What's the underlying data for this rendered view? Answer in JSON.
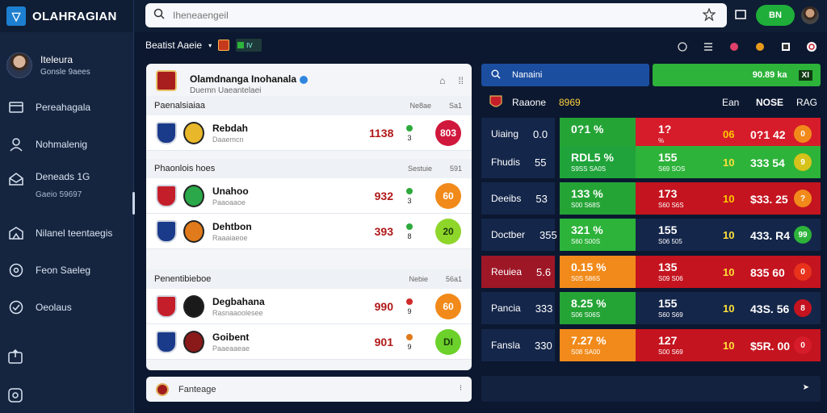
{
  "app": {
    "title": "OLAHRAGIAN"
  },
  "profile": {
    "name": "Iteleura",
    "subtitle": "Gonsle 9aees"
  },
  "sidebar": {
    "items": [
      {
        "label": "Pereahagala",
        "icon": "card-icon"
      },
      {
        "label": "Nohmalenig",
        "icon": "user-icon"
      },
      {
        "label": "Deneads 1G",
        "sub": "Gaeio 59697",
        "icon": "mail-icon"
      },
      {
        "label": "Nilanel teentaegis",
        "icon": "chart-icon"
      },
      {
        "label": "Feon Saeleg",
        "icon": "target-icon"
      },
      {
        "label": "Oeolaus",
        "icon": "refresh-icon"
      }
    ],
    "bottom": [
      {
        "icon": "export-icon"
      },
      {
        "icon": "help-icon"
      }
    ]
  },
  "search": {
    "placeholder": "Iheneaengeil"
  },
  "topbar": {
    "button": "BN"
  },
  "subheader": {
    "label": "Beatist Aaeie",
    "chip": "IV"
  },
  "league": {
    "title": "Olamdnanga Inohanala",
    "subtitle": "Duemn Uaeantelaei"
  },
  "groups": [
    {
      "label": "Paenalsiaiaa",
      "cols": [
        "Ne8ae",
        "Sa1"
      ],
      "rows": [
        {
          "name": "Rebdah",
          "sub": "Daaemcn",
          "score": "1138",
          "m1": "3",
          "m2": "8",
          "badge": "803",
          "team1": "#1a3a8a",
          "team2": "#e8b72a",
          "badge_color": "#d0183c",
          "m1c": "#2eaa3c",
          "m2c": "#2eaa3c"
        }
      ]
    },
    {
      "label": "Phaonlois hoes",
      "cols": [
        "Sestuie",
        "591"
      ],
      "rows": [
        {
          "name": "Unahoo",
          "sub": "Paaoaaoe",
          "score": "932",
          "m1": "3",
          "m2": "8",
          "badge": "60",
          "team1": "#c41e2a",
          "team2": "#2aa84a",
          "badge_color": "#f18a1a",
          "m1c": "#2eaa3c",
          "m2c": "#2eaa3c"
        },
        {
          "name": "Dehtbon",
          "sub": "Raaaiaeoe",
          "score": "393",
          "m1": "8",
          "m2": "8",
          "badge": "20",
          "team1": "#1a3a8a",
          "team2": "#e07a1a",
          "badge_color": "#8fd62a",
          "m1c": "#2eaa3c",
          "m2c": "#d02a2a"
        }
      ]
    },
    {
      "label": "Penentibieboe",
      "cols": [
        "Nebie",
        "56a1"
      ],
      "rows": [
        {
          "name": "Degbahana",
          "sub": "Rasnaaoolesee",
          "score": "990",
          "m1": "9",
          "m2": "8",
          "badge": "60",
          "team1": "#c41e2a",
          "team2": "#1a1a1a",
          "badge_color": "#f18a1a",
          "m1c": "#d02a2a",
          "m2c": "#2eaa3c"
        },
        {
          "name": "Goibent",
          "sub": "Paaeaaeae",
          "score": "901",
          "m1": "9",
          "m2": "3",
          "badge": "DI",
          "team1": "#1a3a8a",
          "team2": "#8a1a1a",
          "badge_color": "#6cd12a",
          "m1c": "#e07a1a",
          "m2c": "#2eaa3c"
        }
      ]
    }
  ],
  "footer": {
    "label": "Fanteage"
  },
  "right_panel": {
    "search_label": "Nanaini",
    "green_label": "90.89 ka",
    "green_box": "XI",
    "head": {
      "team": "Raaone",
      "val": "8969",
      "c1": "Ean",
      "c2": "NOSE",
      "c3": "RAG"
    },
    "rows": [
      {
        "label": "Uiaing",
        "v": "0.0",
        "left_pct": "0?1 %",
        "left_sub": "",
        "left_color": "#25a436",
        "right_big": "1?",
        "right_sm": "%",
        "c1": "06",
        "c2": "0?1 42",
        "pill": "0",
        "right_color": "#d61c2a",
        "label_color": "#14264a",
        "pill_color": "#f18a1a",
        "c1_color": "#ffcc00"
      },
      {
        "label": "Fhudis",
        "v": "55",
        "left_pct": "RDL5 %",
        "left_sub": "S9SS SA0S",
        "left_color": "#1fa33a",
        "right_big": "155",
        "right_sm": "S69 SOS",
        "c1": "10",
        "c2": "333 54",
        "pill": "9",
        "right_color": "#2db33a",
        "label_color": "#14264a",
        "pill_color": "#d6c21a",
        "c1_color": "#ffe13a"
      },
      {
        "label": "Deeibs",
        "v": "53",
        "left_pct": "133 %",
        "left_sub": "S00 S68S",
        "left_color": "#25a436",
        "right_big": "173",
        "right_sm": "S60 S6S",
        "c1": "10",
        "c2": "$33. 25",
        "pill": "?",
        "right_color": "#c4141f",
        "label_color": "#14264a",
        "pill_color": "#f18a1a",
        "c1_color": "#ffcc00"
      },
      {
        "label": "Doctber",
        "v": "355",
        "left_pct": "321 %",
        "left_sub": "S60 S00S",
        "left_color": "#2db33a",
        "right_big": "155",
        "right_sm": "S06 505",
        "c1": "10",
        "c2": "433. R4",
        "pill": "99",
        "right_color": "#14264a",
        "label_color": "#14264a",
        "pill_color": "#2db33a",
        "c1_color": "#ffe13a"
      },
      {
        "label": "Reuiea",
        "v": "5.6",
        "left_pct": "0.15 %",
        "left_sub": "S0S 586S",
        "left_color": "#f18a1a",
        "right_big": "135",
        "right_sm": "S09 S06",
        "c1": "10",
        "c2": "835 60",
        "pill": "0",
        "right_color": "#c4141f",
        "label_color": "#9e1727",
        "pill_color": "#e8321c",
        "c1_color": "#ffe13a"
      },
      {
        "label": "Pancia",
        "v": "333",
        "left_pct": "8.25 %",
        "left_sub": "S06 S06S",
        "left_color": "#25a436",
        "right_big": "155",
        "right_sm": "S60 S69",
        "c1": "10",
        "c2": "43S. 56",
        "pill": "8",
        "right_color": "#14264a",
        "label_color": "#14264a",
        "pill_color": "#c4141f",
        "c1_color": "#ffe13a"
      },
      {
        "label": "Fansla",
        "v": "330",
        "left_pct": "7.27 %",
        "left_sub": "S08 SA00",
        "left_color": "#f18a1a",
        "right_big": "127",
        "right_sm": "S00 S69",
        "c1": "10",
        "c2": "$5R. 00",
        "pill": "0",
        "right_color": "#c4141f",
        "label_color": "#14264a",
        "pill_color": "#d61c2a",
        "c1_color": "#ffe13a"
      }
    ]
  }
}
